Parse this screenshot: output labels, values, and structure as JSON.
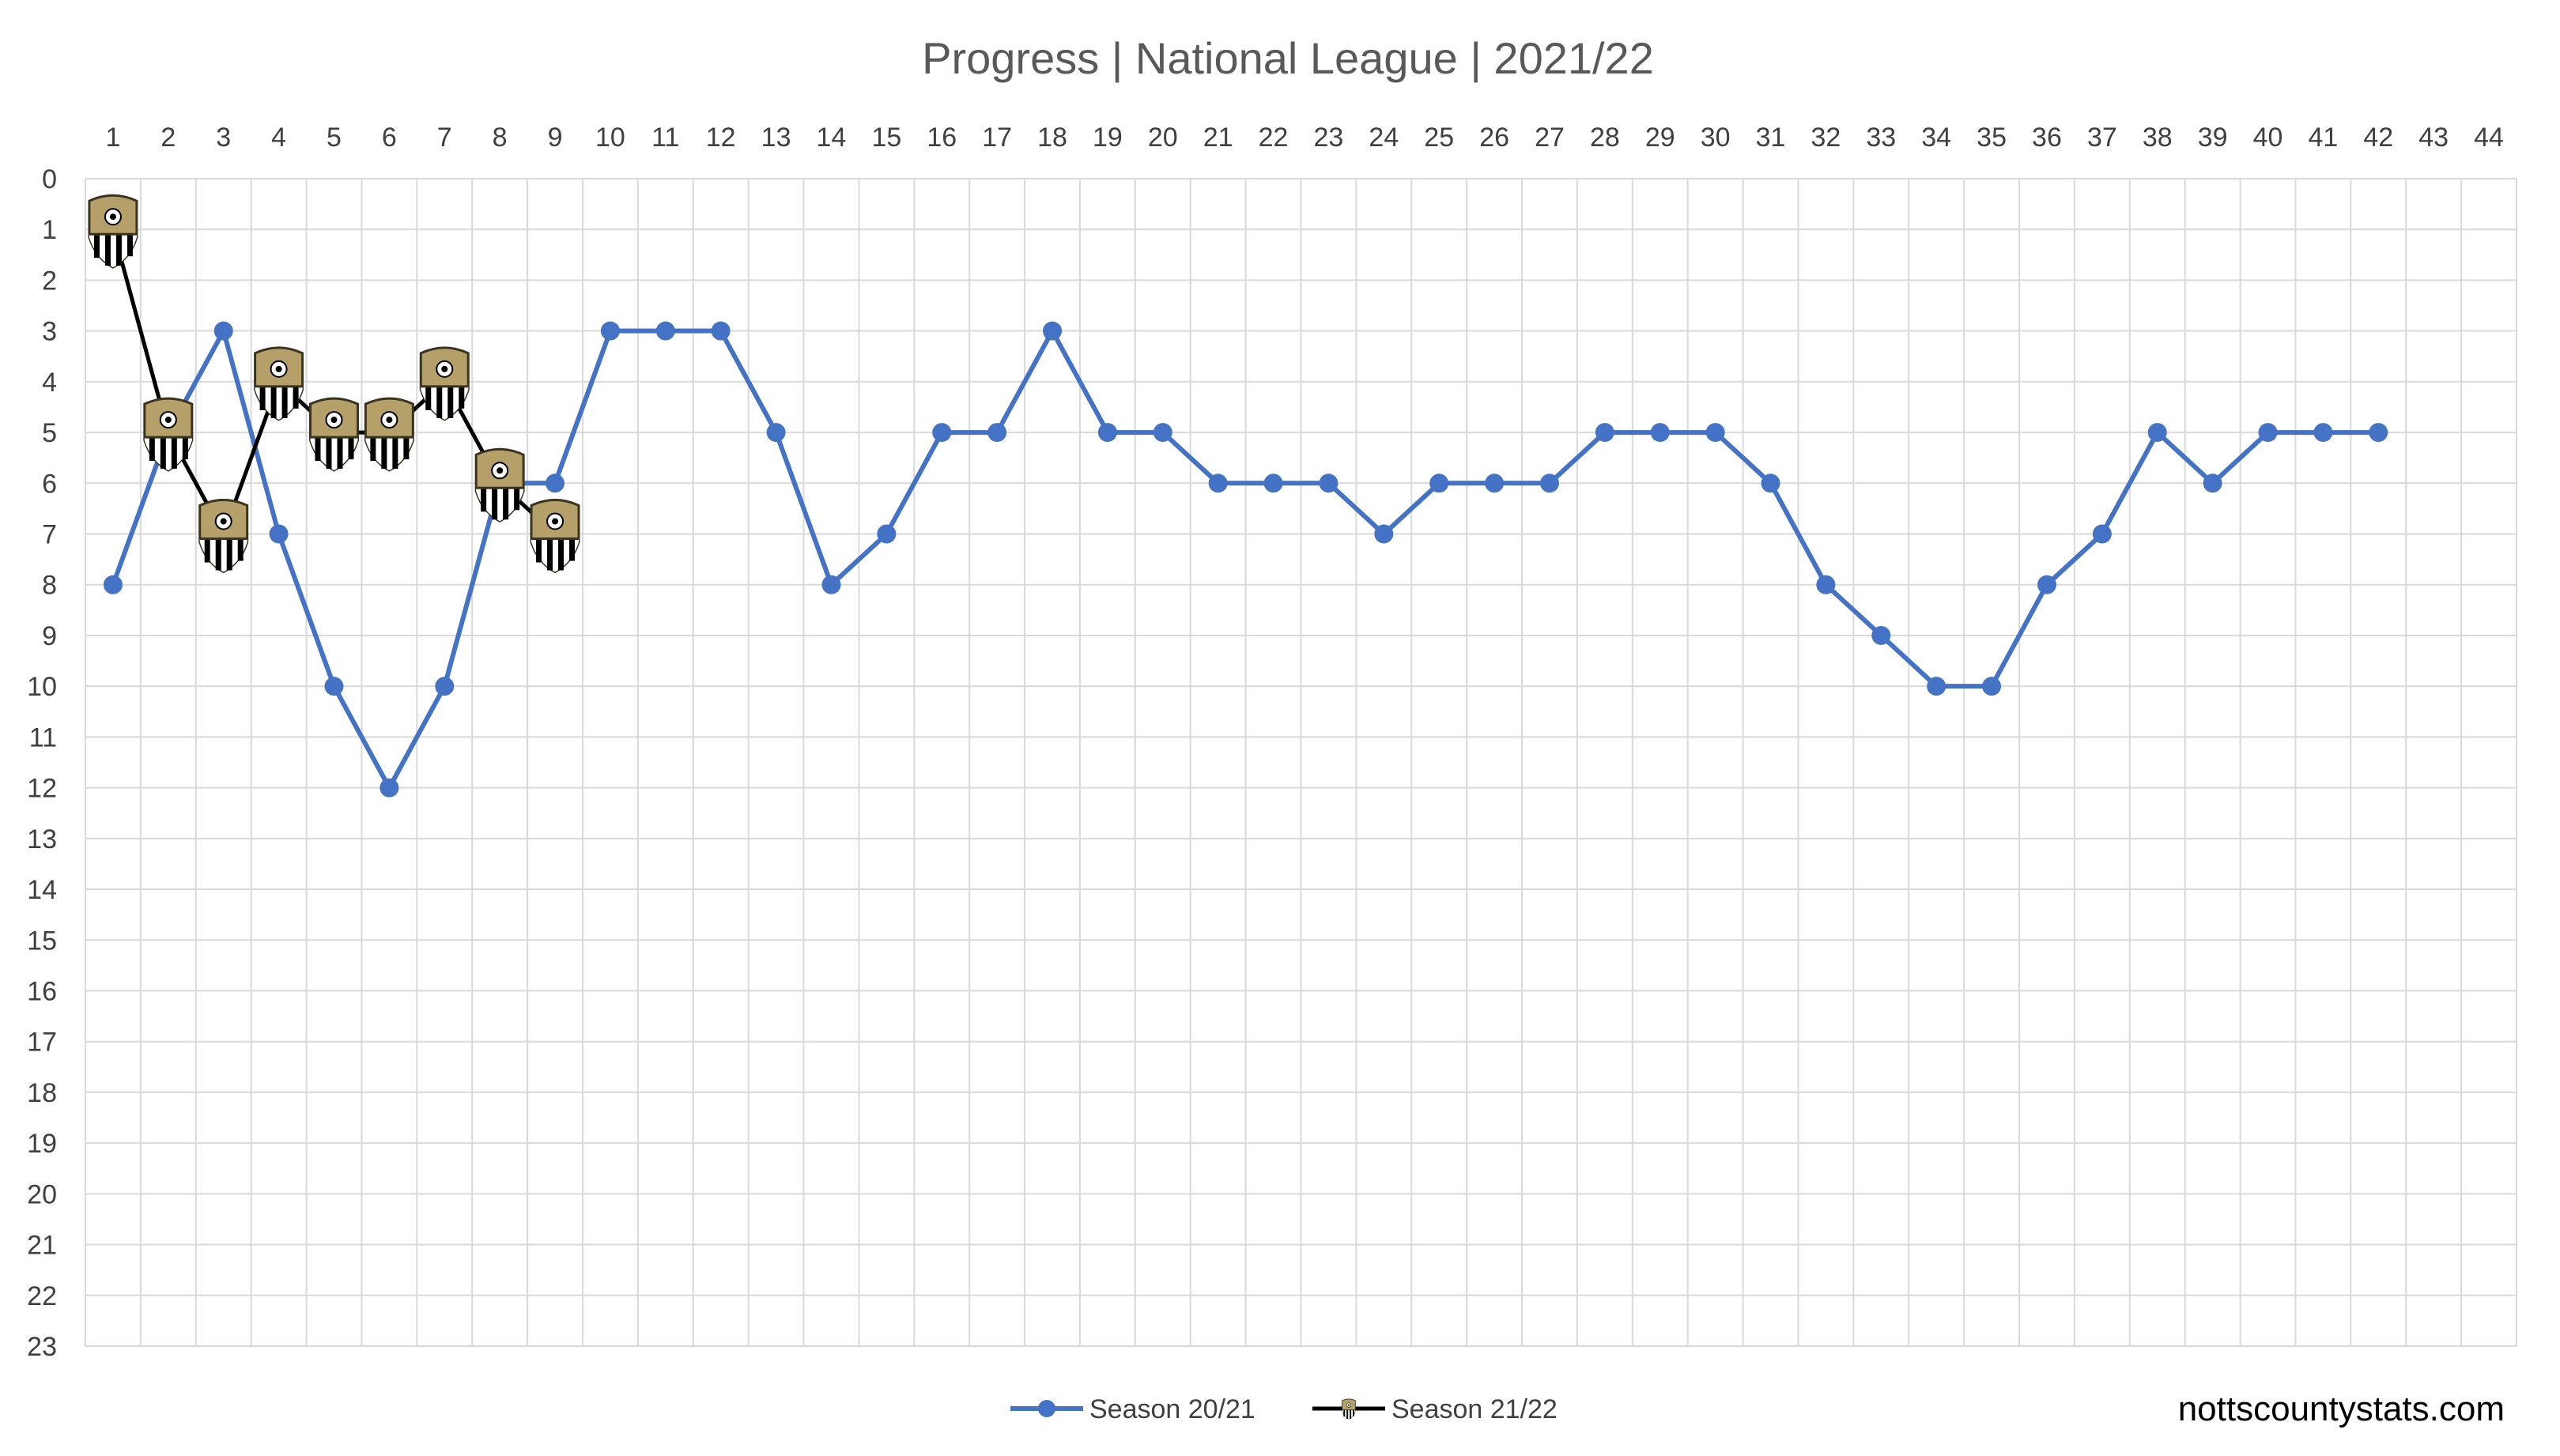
{
  "chart_data": {
    "type": "line",
    "title": "Progress | National League | 2021/22",
    "xlabel": "",
    "ylabel": "",
    "x_ticks": [
      1,
      2,
      3,
      4,
      5,
      6,
      7,
      8,
      9,
      10,
      11,
      12,
      13,
      14,
      15,
      16,
      17,
      18,
      19,
      20,
      21,
      22,
      23,
      24,
      25,
      26,
      27,
      28,
      29,
      30,
      31,
      32,
      33,
      34,
      35,
      36,
      37,
      38,
      39,
      40,
      41,
      42,
      43,
      44
    ],
    "y_ticks": [
      0,
      1,
      2,
      3,
      4,
      5,
      6,
      7,
      8,
      9,
      10,
      11,
      12,
      13,
      14,
      15,
      16,
      17,
      18,
      19,
      20,
      21,
      22,
      23
    ],
    "xlim": [
      1,
      44
    ],
    "ylim": [
      0,
      23
    ],
    "y_inverted": true,
    "x_axis_position": "top",
    "grid": true,
    "legend_position": "bottom-center",
    "series": [
      {
        "name": "Season 20/21",
        "color": "#4472C4",
        "marker": "circle",
        "x": [
          1,
          2,
          3,
          4,
          5,
          6,
          7,
          8,
          9,
          10,
          11,
          12,
          13,
          14,
          15,
          16,
          17,
          18,
          19,
          20,
          21,
          22,
          23,
          24,
          25,
          26,
          27,
          28,
          29,
          30,
          31,
          32,
          33,
          34,
          35,
          36,
          37,
          38,
          39,
          40,
          41,
          42
        ],
        "values": [
          8,
          5,
          3,
          7,
          10,
          12,
          10,
          6,
          6,
          3,
          3,
          3,
          5,
          8,
          7,
          5,
          5,
          3,
          5,
          5,
          6,
          6,
          6,
          7,
          6,
          6,
          6,
          5,
          5,
          5,
          6,
          8,
          9,
          10,
          10,
          8,
          7,
          5,
          6,
          5,
          5,
          5
        ]
      },
      {
        "name": "Season 21/22",
        "color": "#000000",
        "marker": "club-crest-icon",
        "x": [
          1,
          2,
          3,
          4,
          5,
          6,
          7,
          8,
          9
        ],
        "values": [
          1,
          5,
          7,
          4,
          5,
          5,
          4,
          6,
          7
        ]
      }
    ]
  },
  "watermark": "nottscountystats.com"
}
